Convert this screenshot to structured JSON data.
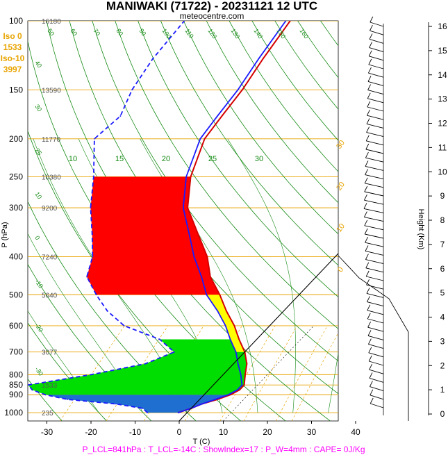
{
  "title": "MANIWAKI (71722) - 20231121 12 UTC",
  "subtitle": "meteocentre.com",
  "iso_labels": [
    "Iso 0",
    "1533",
    "Iso-10",
    "3997"
  ],
  "footer": "P_LCL=841hPa : T_LCL=-14C : ShowIndex=17 : P_W=4mm : CAPE= 0J/Kg",
  "colors": {
    "temperature": "#d40000",
    "parcel": "#1a1aff",
    "dewpoint": "#1a1aff",
    "isobar": "#e8a400",
    "dry_adiabat": "#138a13",
    "moist_adiabat": "#138a13",
    "mixing_ratio": "#e8a400",
    "cape_fill": "#ff0000",
    "yellow_fill": "#ffff00",
    "green_fill": "#00dd00",
    "blue_fill": "#1f6fd0",
    "zero_isotherm": "#000000"
  },
  "chart_data": {
    "type": "line",
    "xlabel": "T (C)",
    "ylabel": "P (hPa)",
    "y2label": "Height (Km)",
    "x_ticks": [
      -30,
      -20,
      -10,
      0,
      10,
      20,
      30,
      40
    ],
    "xlim": [
      -34,
      46
    ],
    "pressure_levels": [
      100,
      150,
      200,
      250,
      300,
      400,
      500,
      600,
      700,
      800,
      850,
      900,
      1000
    ],
    "ylim": [
      1050,
      100
    ],
    "log_pressure": true,
    "height_km_ticks": [
      0,
      1,
      2,
      3,
      4,
      5,
      6,
      7,
      8,
      9,
      10,
      11,
      12,
      13,
      14,
      15,
      16
    ],
    "geopotential_labels": [
      {
        "p": 100,
        "label": "16180"
      },
      {
        "p": 150,
        "label": "13590"
      },
      {
        "p": 200,
        "label": "11770"
      },
      {
        "p": 250,
        "label": "10380"
      },
      {
        "p": 300,
        "label": "9200"
      },
      {
        "p": 400,
        "label": "7240"
      },
      {
        "p": 500,
        "label": "5640"
      },
      {
        "p": 700,
        "label": "3077"
      },
      {
        "p": 850,
        "label": "1533"
      },
      {
        "p": 1000,
        "label": "235"
      }
    ],
    "dry_adiabat_labels": [
      {
        "theta": 10,
        "label": "10"
      },
      {
        "theta": 15,
        "label": "15"
      },
      {
        "theta": 20,
        "label": "20"
      },
      {
        "theta": 25,
        "label": "25"
      },
      {
        "theta": 30,
        "label": "30"
      }
    ],
    "mixing_ratio_labels": [
      {
        "w": 0,
        "label": "0"
      },
      {
        "w": 10,
        "label": "10"
      },
      {
        "w": 20,
        "label": "20"
      },
      {
        "w": 30,
        "label": "30"
      }
    ],
    "side_numbers": [
      "50",
      "60",
      "70",
      "80",
      "90",
      "100",
      "110",
      "120",
      "130",
      "140",
      "150",
      "160",
      "40",
      "30",
      "25",
      "10",
      "0",
      "-10",
      "-20",
      "-30"
    ],
    "series": [
      {
        "name": "Temperature",
        "values": [
          {
            "p": 1000,
            "t": -2
          },
          {
            "p": 975,
            "t": 0
          },
          {
            "p": 950,
            "t": 1.5
          },
          {
            "p": 925,
            "t": 4
          },
          {
            "p": 900,
            "t": 6
          },
          {
            "p": 875,
            "t": 7
          },
          {
            "p": 850,
            "t": 7
          },
          {
            "p": 800,
            "t": 5
          },
          {
            "p": 750,
            "t": 3
          },
          {
            "p": 700,
            "t": 0
          },
          {
            "p": 650,
            "t": -4
          },
          {
            "p": 600,
            "t": -8
          },
          {
            "p": 550,
            "t": -13
          },
          {
            "p": 500,
            "t": -18
          },
          {
            "p": 450,
            "t": -24
          },
          {
            "p": 400,
            "t": -29
          },
          {
            "p": 350,
            "t": -36
          },
          {
            "p": 300,
            "t": -44
          },
          {
            "p": 250,
            "t": -50
          },
          {
            "p": 200,
            "t": -55
          },
          {
            "p": 175,
            "t": -56
          },
          {
            "p": 150,
            "t": -57
          },
          {
            "p": 125,
            "t": -59
          },
          {
            "p": 100,
            "t": -61
          }
        ]
      },
      {
        "name": "Parcel",
        "values": [
          {
            "p": 1000,
            "t": -2
          },
          {
            "p": 975,
            "t": 0
          },
          {
            "p": 950,
            "t": 1.5
          },
          {
            "p": 925,
            "t": 3.5
          },
          {
            "p": 900,
            "t": 5.5
          },
          {
            "p": 875,
            "t": 6.5
          },
          {
            "p": 850,
            "t": 6.5
          },
          {
            "p": 800,
            "t": 4
          },
          {
            "p": 750,
            "t": 1
          },
          {
            "p": 700,
            "t": -2
          },
          {
            "p": 650,
            "t": -6
          },
          {
            "p": 600,
            "t": -10
          },
          {
            "p": 550,
            "t": -15
          },
          {
            "p": 500,
            "t": -21
          },
          {
            "p": 450,
            "t": -26
          },
          {
            "p": 400,
            "t": -32
          },
          {
            "p": 350,
            "t": -38
          },
          {
            "p": 300,
            "t": -45
          },
          {
            "p": 250,
            "t": -51
          },
          {
            "p": 200,
            "t": -56
          },
          {
            "p": 175,
            "t": -57
          },
          {
            "p": 150,
            "t": -58
          },
          {
            "p": 125,
            "t": -60
          },
          {
            "p": 100,
            "t": -62
          }
        ]
      },
      {
        "name": "Dewpoint",
        "values": [
          {
            "p": 1000,
            "t": -9
          },
          {
            "p": 975,
            "t": -11
          },
          {
            "p": 950,
            "t": -18
          },
          {
            "p": 925,
            "t": -30
          },
          {
            "p": 900,
            "t": -36
          },
          {
            "p": 875,
            "t": -40
          },
          {
            "p": 850,
            "t": -42
          },
          {
            "p": 800,
            "t": -30
          },
          {
            "p": 750,
            "t": -20
          },
          {
            "p": 700,
            "t": -16
          },
          {
            "p": 650,
            "t": -22
          },
          {
            "p": 600,
            "t": -33
          },
          {
            "p": 550,
            "t": -40
          },
          {
            "p": 500,
            "t": -46
          },
          {
            "p": 450,
            "t": -52
          },
          {
            "p": 400,
            "t": -55
          },
          {
            "p": 350,
            "t": -60
          },
          {
            "p": 300,
            "t": -66
          },
          {
            "p": 250,
            "t": -72
          },
          {
            "p": 200,
            "t": -80
          },
          {
            "p": 175,
            "t": -79
          },
          {
            "p": 150,
            "t": -82
          },
          {
            "p": 125,
            "t": -84
          },
          {
            "p": 100,
            "t": -85
          }
        ]
      }
    ]
  }
}
